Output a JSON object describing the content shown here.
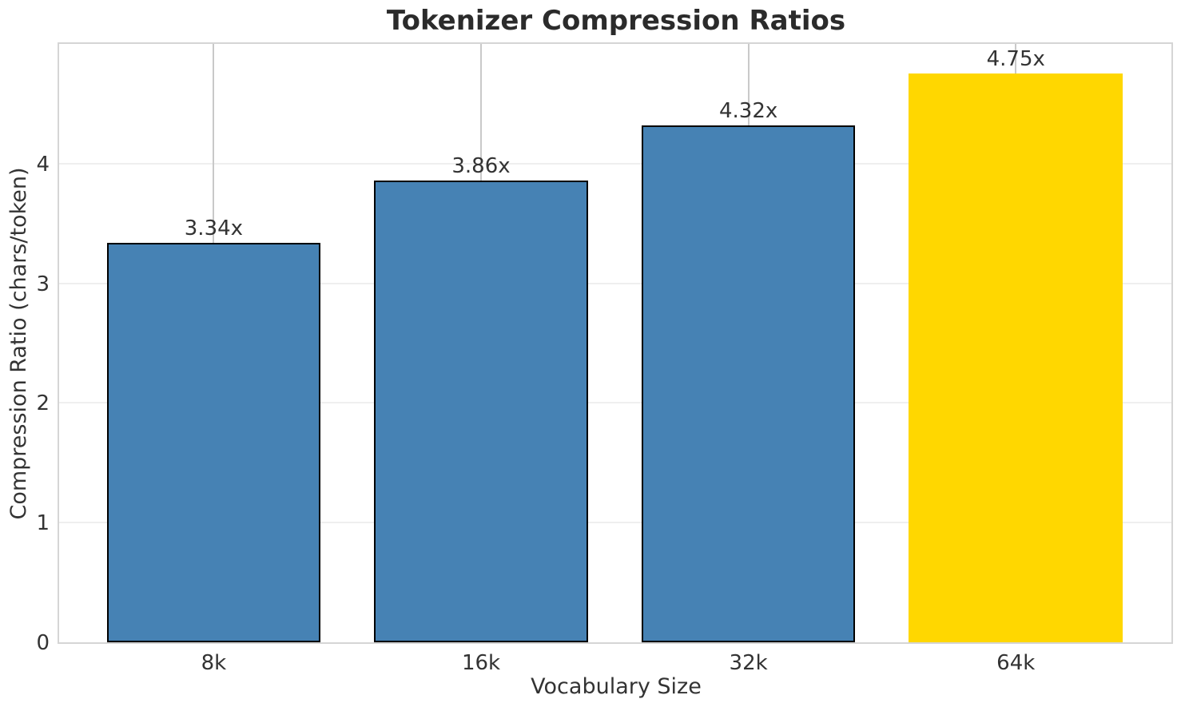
{
  "chart_data": {
    "type": "bar",
    "title": "Tokenizer Compression Ratios",
    "xlabel": "Vocabulary Size",
    "ylabel": "Compression Ratio (chars/token)",
    "categories": [
      "8k",
      "16k",
      "32k",
      "64k"
    ],
    "values": [
      3.34,
      3.86,
      4.32,
      4.75
    ],
    "bar_labels": [
      "3.34x",
      "3.86x",
      "4.32x",
      "4.75x"
    ],
    "bar_colors": [
      "#4682B4",
      "#4682B4",
      "#4682B4",
      "#FFD700"
    ],
    "bar_edge_colors": [
      "#000000",
      "#000000",
      "#000000",
      "#FFD700"
    ],
    "highlighted_category": "64k",
    "ylim": [
      0,
      5
    ],
    "yticks": [
      0,
      1,
      2,
      3,
      4
    ],
    "grid": "on",
    "legend": "none"
  },
  "colors": {
    "background": "#ffffff",
    "bar_default": "#4682B4",
    "bar_highlight": "#FFD700",
    "bar_edge": "#000000",
    "grid_vertical": "#c9c9c9",
    "grid_horizontal": "#efefef",
    "spine": "#d5d5d5",
    "tick_text": "#333333",
    "title_text": "#2b2b2b"
  }
}
